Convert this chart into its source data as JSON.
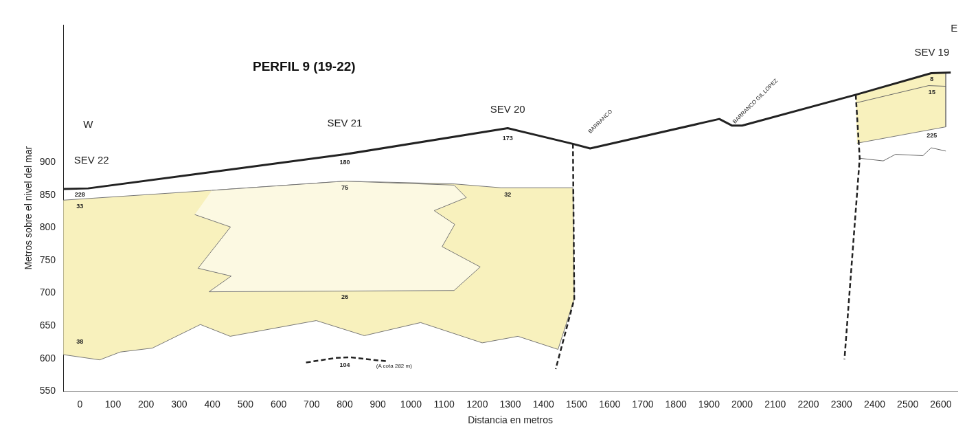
{
  "chart_data": {
    "type": "line",
    "title": "PERFIL 9 (19-22)",
    "xlabel": "Distancia en metros",
    "ylabel": "Metros sobre el nivel del mar",
    "xlim": [
      -50,
      2650
    ],
    "ylim": [
      550,
      1110
    ],
    "xticks": [
      0,
      100,
      200,
      300,
      400,
      500,
      600,
      700,
      800,
      900,
      1000,
      1100,
      1200,
      1300,
      1400,
      1500,
      1600,
      1700,
      1800,
      1900,
      2000,
      2100,
      2200,
      2300,
      2400,
      2500,
      2600
    ],
    "yticks": [
      550,
      600,
      650,
      700,
      750,
      800,
      850,
      900
    ],
    "series": [
      {
        "type": "area",
        "color": "#f8f1bd",
        "x": [
          -50,
          399,
          800,
          1126,
          1271,
          1489,
          1493,
          1444,
          1323,
          1215,
          1029,
          859,
          714,
          454,
          364,
          219,
          122,
          60,
          -50
        ],
        "values": [
          842,
          857,
          871,
          867,
          861,
          861,
          691,
          614,
          634,
          624,
          655,
          635,
          658,
          634,
          652,
          616,
          610,
          598,
          606
        ]
      },
      {
        "type": "area",
        "color": "#fcf9e2",
        "x": [
          399,
          800,
          1130,
          1167,
          1070,
          1132,
          1094,
          1209,
          1130,
          390,
          457,
          357,
          455,
          347
        ],
        "values": [
          857,
          871,
          865,
          846,
          826,
          805,
          771,
          740,
          704,
          702,
          726,
          738,
          801,
          820
        ]
      },
      {
        "type": "area",
        "color": "#f8f1bd",
        "x": [
          2343,
          2571,
          2615,
          2615,
          2347
        ],
        "values": [
          1003,
          1036,
          1037,
          954,
          929
        ]
      },
      {
        "type": "line",
        "color": "#666666",
        "x": [
          2347,
          2563,
          2615
        ],
        "values": [
          991,
          1017,
          1016
        ]
      },
      {
        "type": "line",
        "color": "#666666",
        "x": [
          2355,
          2426,
          2463,
          2546,
          2571,
          2615
        ],
        "values": [
          906,
          902,
          912,
          910,
          922,
          917
        ]
      },
      {
        "type": "line",
        "color": "#222222",
        "x": [
          -50,
          25,
          399,
          800,
          1292,
          1489,
          1541,
          1931,
          1969,
          2000,
          2343,
          2571,
          2630
        ],
        "values": [
          859,
          860,
          885,
          912,
          952,
          928,
          921,
          966,
          956,
          956,
          1003,
          1036,
          1037
        ]
      },
      {
        "type": "line",
        "color": "#222222",
        "line_style": "dashed",
        "x": [
          1489,
          1493,
          1437
        ],
        "values": [
          928,
          691,
          584
        ]
      },
      {
        "type": "line",
        "color": "#222222",
        "line_style": "dashed",
        "x": [
          2343,
          2355,
          2309
        ],
        "values": [
          1003,
          906,
          599
        ]
      },
      {
        "type": "line",
        "color": "#222222",
        "line_style": "dashed",
        "x": [
          683,
          773,
          814,
          924
        ],
        "values": [
          594,
          601,
          602,
          596
        ]
      }
    ],
    "annotations": [
      "W",
      "E",
      "SEV 22",
      "SEV 21",
      "SEV 20",
      "SEV 19",
      "BARRANCO",
      "BARRANCO GIL LOPEZ",
      "228",
      "33",
      "38",
      "180",
      "75",
      "26",
      "104",
      "(A cota 282 m)",
      "173",
      "32",
      "8",
      "15",
      "225"
    ]
  }
}
